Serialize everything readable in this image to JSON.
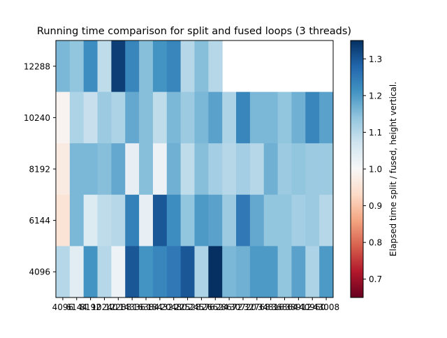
{
  "chart_data": {
    "type": "heatmap",
    "title": "Running time comparison for split and fused loops (3 threads)",
    "xlabel": "",
    "ylabel": "",
    "x_tick_labels": [
      "4096",
      "6144",
      "8192",
      "10240",
      "12288",
      "14336",
      "16384",
      "18432",
      "20480",
      "22528",
      "24576",
      "26624",
      "28672",
      "30720",
      "32768",
      "34816",
      "36864",
      "38912",
      "40960",
      "43008"
    ],
    "y_tick_labels": [
      "12288",
      "10240",
      "8192",
      "6144",
      "4096"
    ],
    "colorbar": {
      "label": "Elapsed time split / fused, height vertical.",
      "colormap": "RdBu",
      "vmin": 0.65,
      "vmax": 1.35,
      "ticks": [
        "0.7",
        "0.8",
        "0.9",
        "1.0",
        "1.1",
        "1.2",
        "1.3"
      ]
    },
    "grid": false,
    "rows": [
      [
        1.16,
        1.14,
        1.22,
        1.09,
        1.33,
        1.23,
        1.15,
        1.21,
        1.23,
        1.1,
        1.15,
        1.1,
        null,
        null,
        null,
        null,
        null,
        null,
        null,
        null
      ],
      [
        0.99,
        1.11,
        1.08,
        1.13,
        1.11,
        1.18,
        1.15,
        1.09,
        1.16,
        1.13,
        1.16,
        1.19,
        1.11,
        1.23,
        1.16,
        1.16,
        1.14,
        1.17,
        1.23,
        1.19
      ],
      [
        0.97,
        1.16,
        1.16,
        1.15,
        1.18,
        1.03,
        1.15,
        1.02,
        1.17,
        1.09,
        1.15,
        1.12,
        1.1,
        1.12,
        1.1,
        1.17,
        1.13,
        1.14,
        1.13,
        1.13
      ],
      [
        0.95,
        1.16,
        1.05,
        1.09,
        1.1,
        1.24,
        1.03,
        1.3,
        1.22,
        1.14,
        1.2,
        1.19,
        1.13,
        1.25,
        1.18,
        1.14,
        1.14,
        1.12,
        1.13,
        1.1
      ],
      [
        1.1,
        1.04,
        1.21,
        1.1,
        1.02,
        1.3,
        1.21,
        1.23,
        1.25,
        1.3,
        1.11,
        1.35,
        1.16,
        1.17,
        1.2,
        1.2,
        1.14,
        1.19,
        1.11,
        1.2
      ]
    ]
  }
}
